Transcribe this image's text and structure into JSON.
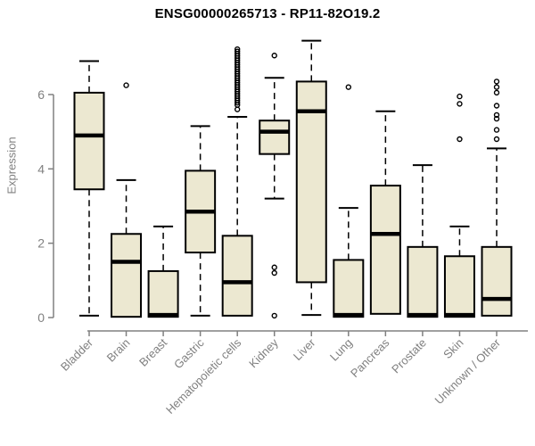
{
  "chart_data": {
    "type": "boxplot",
    "title": "ENSG00000265713 - RP11-82O19.2",
    "ylabel": "Expression",
    "yticks": [
      0,
      2,
      4,
      6
    ],
    "ylim": [
      0,
      7.5
    ],
    "grid": false,
    "legend": "none",
    "categories": [
      "Bladder",
      "Brain",
      "Breast",
      "Gastric",
      "Hematopoietic cells",
      "Kidney",
      "Liver",
      "Lung",
      "Pancreas",
      "Prostate",
      "Skin",
      "Unknown / Other"
    ],
    "boxes": [
      {
        "category": "Bladder",
        "whisker_low": 0.05,
        "q1": 3.45,
        "median": 4.9,
        "q3": 6.05,
        "whisker_high": 6.9,
        "outliers": []
      },
      {
        "category": "Brain",
        "whisker_low": 0.02,
        "q1": 0.02,
        "median": 1.5,
        "q3": 2.25,
        "whisker_high": 3.7,
        "outliers": [
          6.25
        ]
      },
      {
        "category": "Breast",
        "whisker_low": 0.02,
        "q1": 0.02,
        "median": 0.07,
        "q3": 1.25,
        "whisker_high": 2.45,
        "outliers": []
      },
      {
        "category": "Gastric",
        "whisker_low": 0.05,
        "q1": 1.75,
        "median": 2.85,
        "q3": 3.95,
        "whisker_high": 5.15,
        "outliers": []
      },
      {
        "category": "Hematopoietic cells",
        "whisker_low": 0.05,
        "q1": 0.05,
        "median": 0.95,
        "q3": 2.2,
        "whisker_high": 5.4,
        "outliers": [
          5.6,
          5.72,
          5.78,
          5.84,
          5.9,
          5.96,
          6.02,
          6.08,
          6.14,
          6.2,
          6.26,
          6.32,
          6.38,
          6.44,
          6.5,
          6.56,
          6.62,
          6.68,
          6.74,
          6.8,
          6.86,
          6.92,
          6.98,
          7.04,
          7.1,
          7.16,
          7.22
        ]
      },
      {
        "category": "Kidney",
        "whisker_low": 3.2,
        "q1": 4.4,
        "median": 5.0,
        "q3": 5.3,
        "whisker_high": 6.45,
        "outliers": [
          7.05,
          1.35,
          1.2,
          0.05
        ]
      },
      {
        "category": "Liver",
        "whisker_low": 0.07,
        "q1": 0.95,
        "median": 5.55,
        "q3": 6.35,
        "whisker_high": 7.45,
        "outliers": []
      },
      {
        "category": "Lung",
        "whisker_low": 0.02,
        "q1": 0.02,
        "median": 0.07,
        "q3": 1.55,
        "whisker_high": 2.95,
        "outliers": [
          6.2
        ]
      },
      {
        "category": "Pancreas",
        "whisker_low": 0.1,
        "q1": 0.1,
        "median": 2.25,
        "q3": 3.55,
        "whisker_high": 5.55,
        "outliers": []
      },
      {
        "category": "Prostate",
        "whisker_low": 0.02,
        "q1": 0.02,
        "median": 0.07,
        "q3": 1.9,
        "whisker_high": 4.1,
        "outliers": []
      },
      {
        "category": "Skin",
        "whisker_low": 0.02,
        "q1": 0.02,
        "median": 0.07,
        "q3": 1.65,
        "whisker_high": 2.45,
        "outliers": [
          5.95,
          5.75,
          4.8
        ]
      },
      {
        "category": "Unknown / Other",
        "whisker_low": 0.05,
        "q1": 0.05,
        "median": 0.5,
        "q3": 1.9,
        "whisker_high": 4.55,
        "outliers": [
          6.35,
          6.2,
          6.05,
          5.7,
          5.45,
          5.35,
          5.05,
          4.8
        ]
      }
    ],
    "colors": {
      "box_fill": "#ece8d1",
      "box_stroke": "#000000",
      "median": "#000000",
      "whisker": "#000000",
      "outlier": "#000000",
      "axis": "#808080",
      "tick_text": "#808080",
      "title_text": "#000000",
      "background": "#ffffff"
    }
  }
}
